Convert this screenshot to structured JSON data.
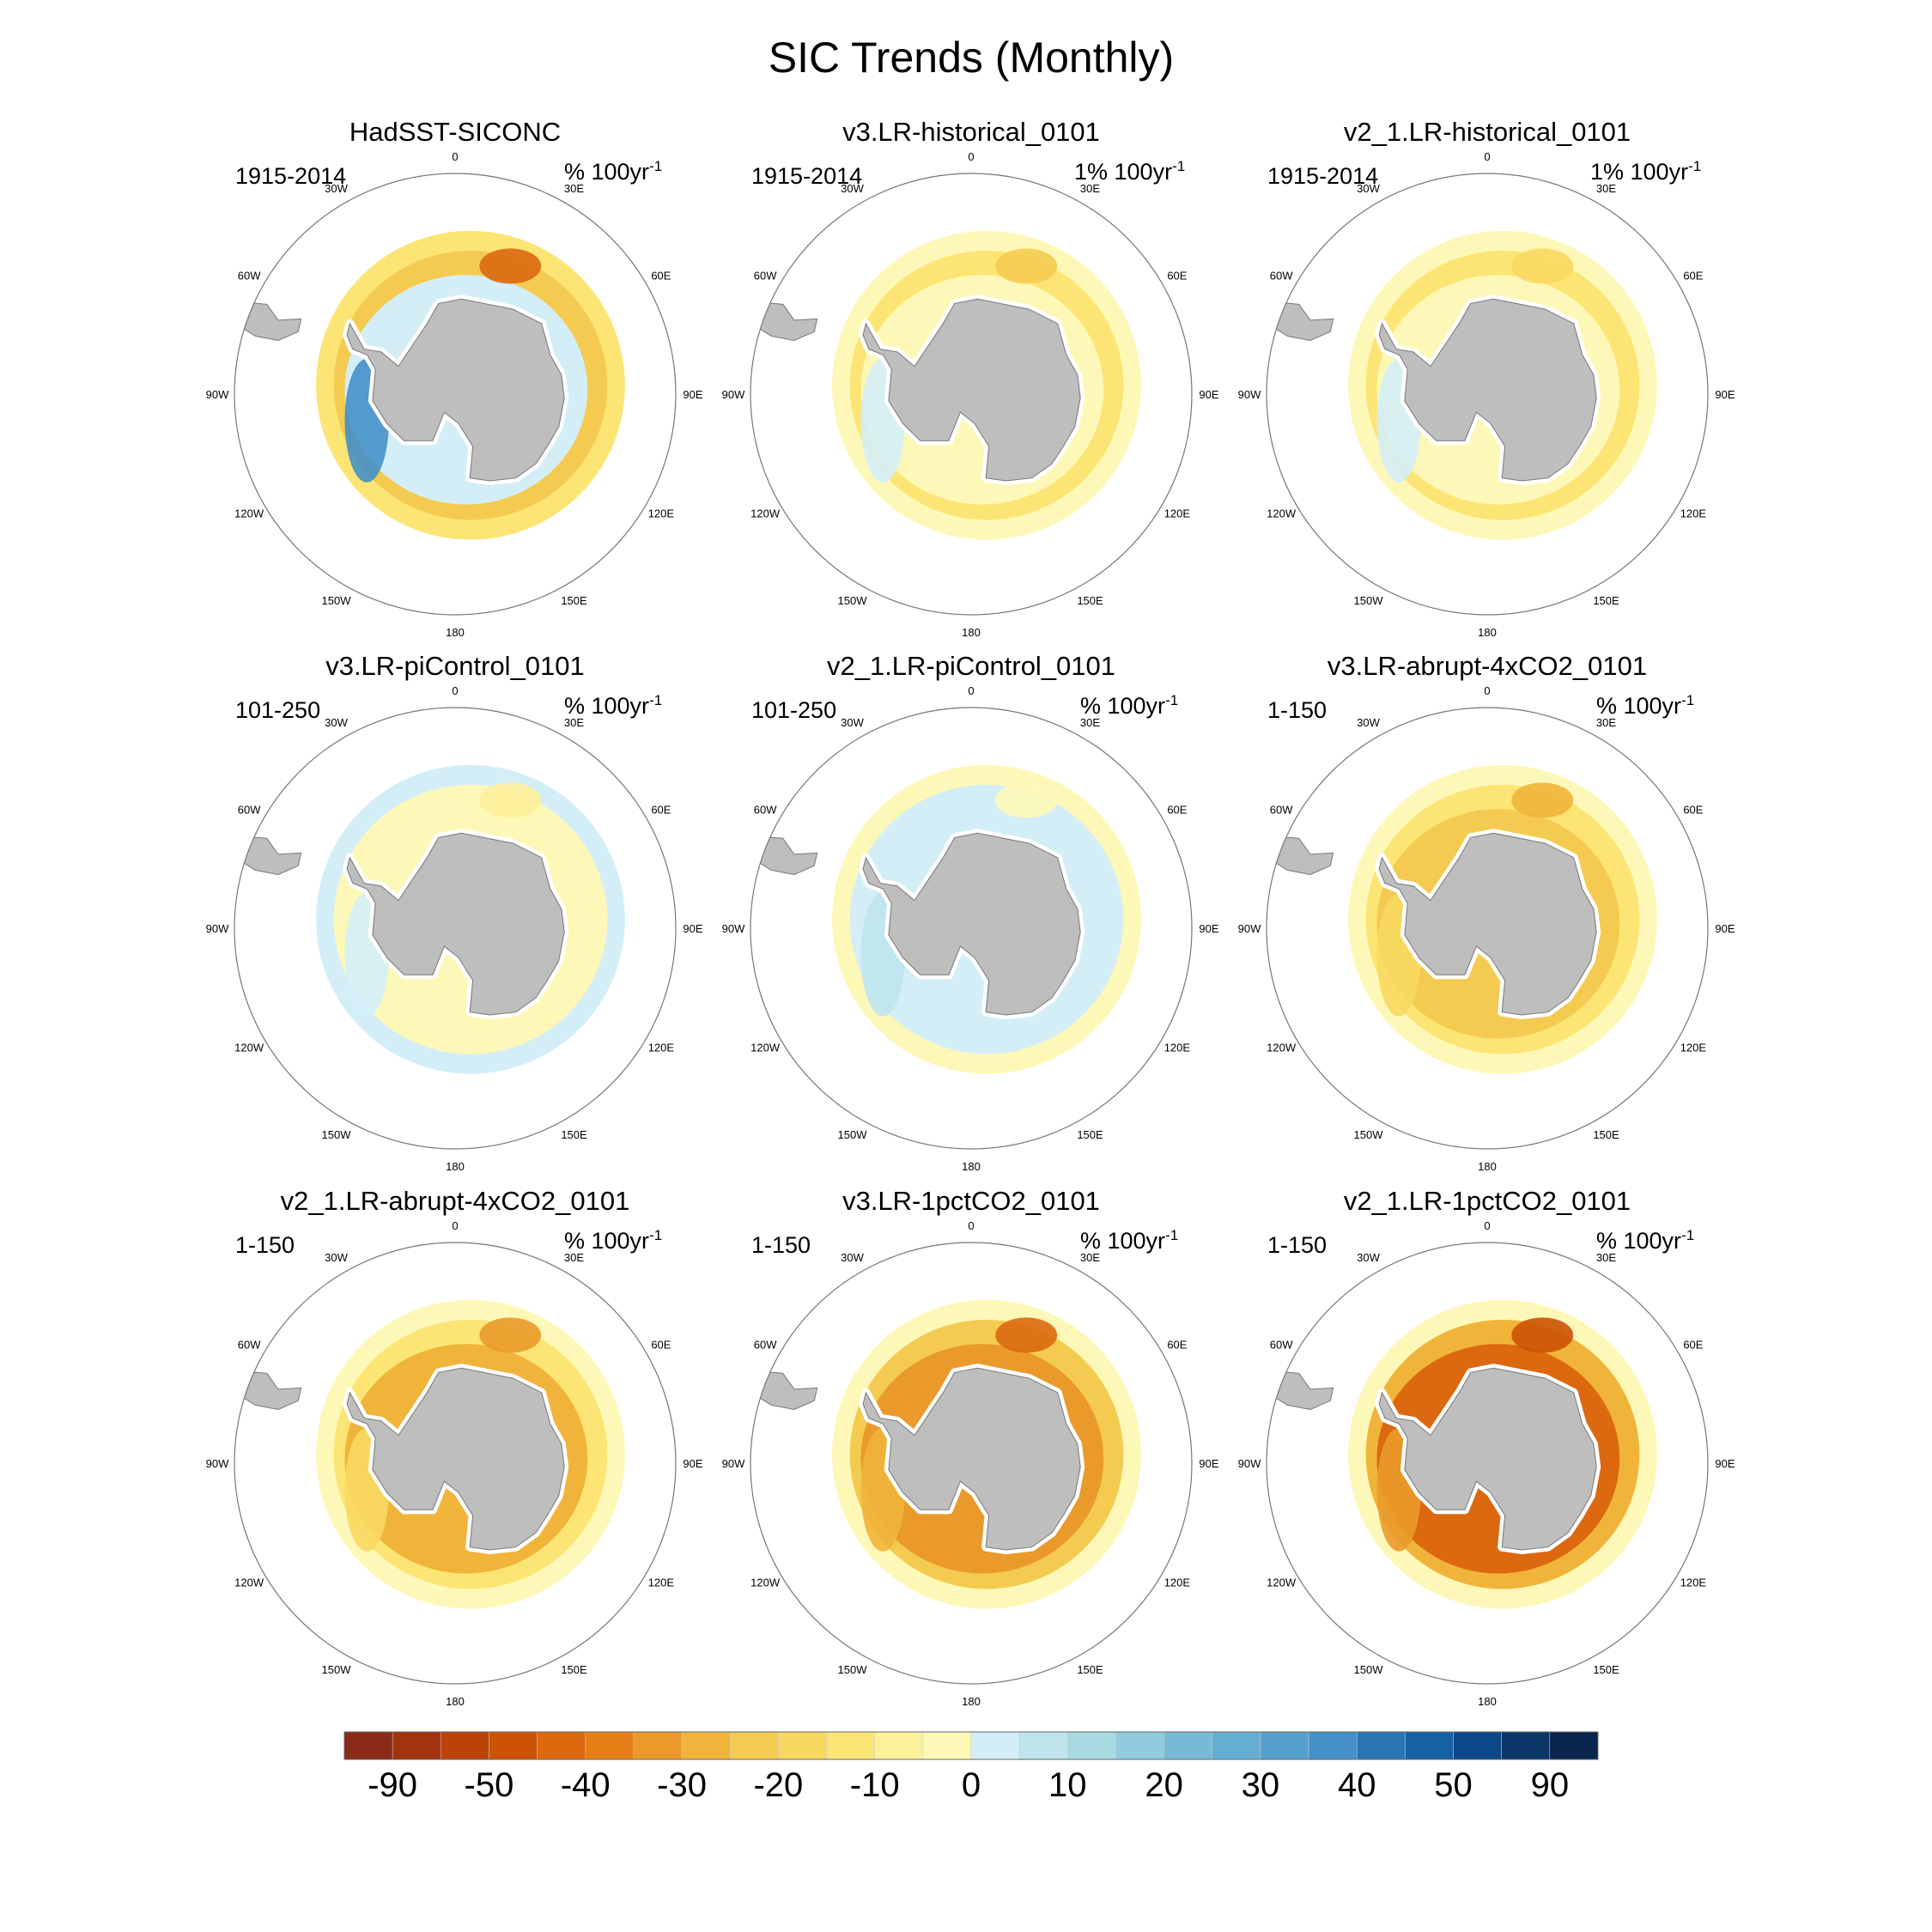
{
  "chart_data": {
    "type": "heatmap",
    "title": "SIC Trends (Monthly)",
    "projection": "south-polar-stereographic",
    "longitude_labels": [
      "0",
      "30E",
      "60E",
      "90E",
      "120E",
      "150E",
      "180",
      "150W",
      "120W",
      "90W",
      "60W",
      "30W"
    ],
    "colorbar": {
      "tick_labels": [
        "-90",
        "-50",
        "-40",
        "-30",
        "-20",
        "-10",
        "0",
        "10",
        "20",
        "30",
        "40",
        "50",
        "90"
      ],
      "colors": [
        "#8a2a18",
        "#a2330f",
        "#bb4208",
        "#cc5206",
        "#dc6810",
        "#e67e18",
        "#ea9a2a",
        "#f0b43a",
        "#f4cb50",
        "#f8d860",
        "#fce574",
        "#fdf09a",
        "#fef8b8",
        "#d4eef8",
        "#bfe4ee",
        "#a8dae2",
        "#92cadf",
        "#78bad6",
        "#65aed2",
        "#56a0cc",
        "#4590c8",
        "#2a74b2",
        "#1660a4",
        "#0c4888",
        "#0a3668",
        "#082550"
      ]
    },
    "land_color": "#bebebe",
    "panels": [
      {
        "title": "HadSST-SICONC",
        "period": "1915-2014",
        "units": "% 100yr",
        "units_exp": "-1",
        "bands": [
          "#fce574",
          "#f4cb50",
          "#d4eef8"
        ],
        "accents": [
          "#4590c8",
          "#dc6810"
        ]
      },
      {
        "title": "v3.LR-historical_0101",
        "period": "1915-2014",
        "units": "1% 100yr",
        "units_exp": "-1",
        "bands": [
          "#fef8b8",
          "#fce574",
          "#fef8b8"
        ],
        "accents": [
          "#d4eef8",
          "#f4cb50"
        ]
      },
      {
        "title": "v2_1.LR-historical_0101",
        "period": "1915-2014",
        "units": "1% 100yr",
        "units_exp": "-1",
        "bands": [
          "#fef8b8",
          "#fce574",
          "#fef8b8"
        ],
        "accents": [
          "#d4eef8",
          "#f8d860"
        ]
      },
      {
        "title": "v3.LR-piControl_0101",
        "period": "101-250",
        "units": "% 100yr",
        "units_exp": "-1",
        "bands": [
          "#d4eef8",
          "#fef8b8",
          "#fef8b8"
        ],
        "accents": [
          "#d4eef8",
          "#fdf09a"
        ]
      },
      {
        "title": "v2_1.LR-piControl_0101",
        "period": "101-250",
        "units": "% 100yr",
        "units_exp": "-1",
        "bands": [
          "#fef8b8",
          "#d4eef8",
          "#d4eef8"
        ],
        "accents": [
          "#bfe4ee",
          "#fef8b8"
        ]
      },
      {
        "title": "v3.LR-abrupt-4xCO2_0101",
        "period": "1-150",
        "units": "% 100yr",
        "units_exp": "-1",
        "bands": [
          "#fef8b8",
          "#fce574",
          "#f4cb50"
        ],
        "accents": [
          "#f8d860",
          "#f0b43a"
        ]
      },
      {
        "title": "v2_1.LR-abrupt-4xCO2_0101",
        "period": "1-150",
        "units": "% 100yr",
        "units_exp": "-1",
        "bands": [
          "#fef8b8",
          "#fce574",
          "#f0b43a"
        ],
        "accents": [
          "#f8d860",
          "#ea9a2a"
        ]
      },
      {
        "title": "v3.LR-1pctCO2_0101",
        "period": "1-150",
        "units": "% 100yr",
        "units_exp": "-1",
        "bands": [
          "#fef8b8",
          "#f4cb50",
          "#ea9a2a"
        ],
        "accents": [
          "#f0b43a",
          "#dc6810"
        ]
      },
      {
        "title": "v2_1.LR-1pctCO2_0101",
        "period": "1-150",
        "units": "% 100yr",
        "units_exp": "-1",
        "bands": [
          "#fef8b8",
          "#f0b43a",
          "#dc6810"
        ],
        "accents": [
          "#ea9a2a",
          "#cc5206"
        ]
      }
    ]
  }
}
